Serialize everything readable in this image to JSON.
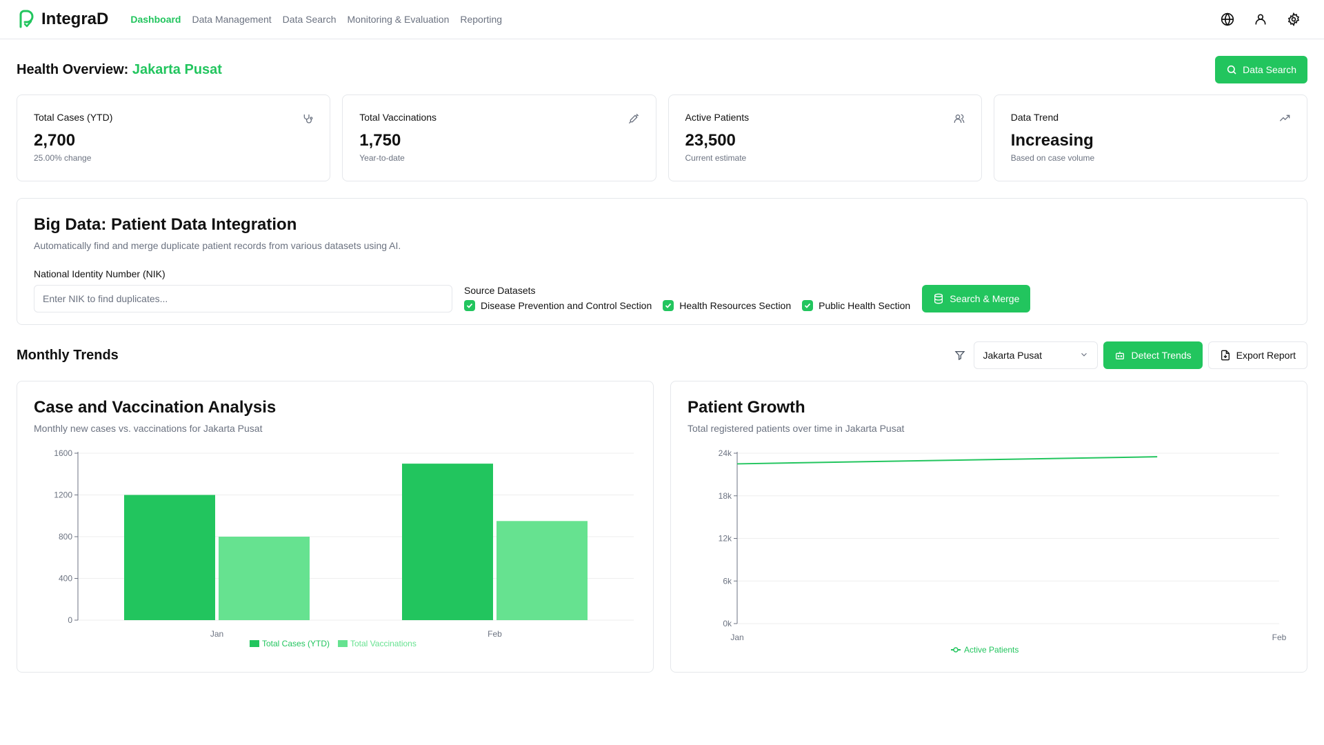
{
  "app": {
    "name": "IntegraD"
  },
  "nav": {
    "items": [
      {
        "label": "Dashboard",
        "active": true
      },
      {
        "label": "Data Management",
        "active": false
      },
      {
        "label": "Data Search",
        "active": false
      },
      {
        "label": "Monitoring & Evaluation",
        "active": false
      },
      {
        "label": "Reporting",
        "active": false
      }
    ],
    "icons": [
      "globe-icon",
      "user-icon",
      "settings-icon"
    ]
  },
  "header": {
    "title_prefix": "Health Overview:",
    "region": "Jakarta Pusat",
    "search_button": "Data Search"
  },
  "stats": [
    {
      "label": "Total Cases (YTD)",
      "value": "2,700",
      "sub": "25.00% change",
      "icon": "stethoscope-icon"
    },
    {
      "label": "Total Vaccinations",
      "value": "1,750",
      "sub": "Year-to-date",
      "icon": "syringe-icon"
    },
    {
      "label": "Active Patients",
      "value": "23,500",
      "sub": "Current estimate",
      "icon": "users-icon"
    },
    {
      "label": "Data Trend",
      "value": "Increasing",
      "sub": "Based on case volume",
      "icon": "trending-up-icon"
    }
  ],
  "bigdata": {
    "title": "Big Data: Patient Data Integration",
    "description": "Automatically find and merge duplicate patient records from various datasets using AI.",
    "nik_label": "National Identity Number (NIK)",
    "nik_placeholder": "Enter NIK to find duplicates...",
    "nik_value": "",
    "datasets_label": "Source Datasets",
    "datasets": [
      {
        "label": "Disease Prevention and Control Section",
        "checked": true
      },
      {
        "label": "Health Resources Section",
        "checked": true
      },
      {
        "label": "Public Health Section",
        "checked": true
      }
    ],
    "merge_button": "Search & Merge"
  },
  "trends": {
    "title": "Monthly Trends",
    "region_select": "Jakarta Pusat",
    "detect_button": "Detect Trends",
    "export_button": "Export Report"
  },
  "colors": {
    "accent": "#22c55e",
    "accent_light": "#66e290",
    "text": "#111111",
    "muted": "#6b7280",
    "border": "#e5e7eb"
  },
  "chart_data": [
    {
      "type": "bar",
      "title": "Case and Vaccination Analysis",
      "subtitle": "Monthly new cases vs. vaccinations for Jakarta Pusat",
      "categories": [
        "Jan",
        "Feb"
      ],
      "series": [
        {
          "name": "Total Cases (YTD)",
          "values": [
            1200,
            1500
          ],
          "color": "#22c55e"
        },
        {
          "name": "Total Vaccinations",
          "values": [
            800,
            950
          ],
          "color": "#66e290"
        }
      ],
      "ylim": [
        0,
        1600
      ],
      "yticks": [
        0,
        400,
        800,
        1200,
        1600
      ],
      "ytick_labels": [
        "0",
        "400",
        "800",
        "1200",
        "1600"
      ],
      "grid": true,
      "legend": "bottom-center"
    },
    {
      "type": "line",
      "title": "Patient Growth",
      "subtitle": "Total registered patients over time in Jakarta Pusat",
      "x": [
        "Jan",
        "Feb"
      ],
      "series": [
        {
          "name": "Active Patients",
          "values": [
            22500,
            23500
          ],
          "color": "#22c55e"
        }
      ],
      "ylim": [
        0,
        24000
      ],
      "yticks": [
        0,
        6000,
        12000,
        18000,
        24000
      ],
      "ytick_labels": [
        "0k",
        "6k",
        "12k",
        "18k",
        "24k"
      ],
      "grid": true,
      "legend": "bottom-center"
    }
  ]
}
